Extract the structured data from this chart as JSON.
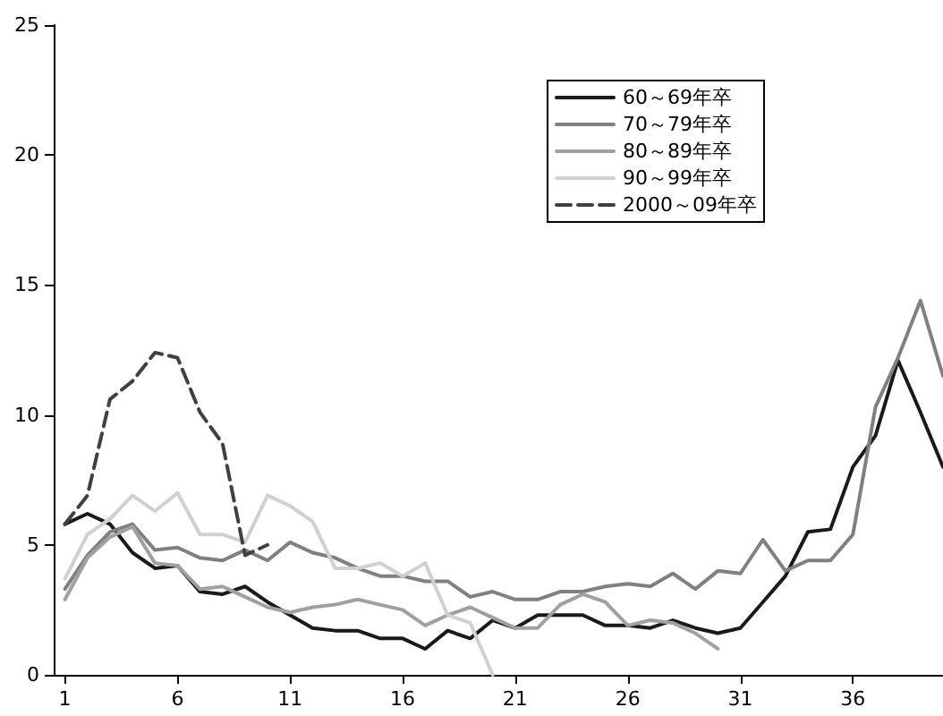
{
  "chart_data": {
    "type": "line",
    "x": [
      1,
      2,
      3,
      4,
      5,
      6,
      7,
      8,
      9,
      10,
      11,
      12,
      13,
      14,
      15,
      16,
      17,
      18,
      19,
      20,
      21,
      22,
      23,
      24,
      25,
      26,
      27,
      28,
      29,
      30,
      31,
      32,
      33,
      34,
      35,
      36,
      37,
      38,
      39,
      40
    ],
    "xlim": [
      0.5,
      40
    ],
    "xticks": [
      1,
      6,
      11,
      16,
      21,
      26,
      31,
      36
    ],
    "series": [
      {
        "name": "60～69年卒",
        "color": "#1a1a1a",
        "values": [
          5.8,
          6.2,
          5.8,
          4.7,
          4.1,
          4.2,
          3.2,
          3.1,
          3.4,
          2.8,
          2.3,
          1.8,
          1.7,
          1.7,
          1.4,
          1.4,
          1.0,
          1.7,
          1.4,
          2.1,
          1.8,
          2.3,
          2.3,
          2.3,
          1.9,
          1.9,
          1.8,
          2.1,
          1.8,
          1.6,
          1.8,
          2.8,
          3.8,
          5.5,
          5.6,
          8.0,
          9.2,
          12.1,
          10.1,
          8.0
        ]
      },
      {
        "name": "70～79年卒",
        "color": "#808080",
        "values": [
          3.3,
          4.6,
          5.5,
          5.8,
          4.8,
          4.9,
          4.5,
          4.4,
          4.8,
          4.4,
          5.1,
          4.7,
          4.5,
          4.1,
          3.8,
          3.8,
          3.6,
          3.6,
          3.0,
          3.2,
          2.9,
          2.9,
          3.2,
          3.2,
          3.4,
          3.5,
          3.4,
          3.9,
          3.3,
          4.0,
          3.9,
          5.2,
          4.0,
          4.4,
          4.4,
          5.4,
          10.3,
          12.2,
          14.4,
          11.5
        ]
      },
      {
        "name": "80～89年卒",
        "color": "#a0a0a0",
        "values": [
          2.9,
          4.5,
          5.3,
          5.7,
          4.3,
          4.2,
          3.3,
          3.4,
          3.0,
          2.6,
          2.4,
          2.6,
          2.7,
          2.9,
          2.7,
          2.5,
          1.9,
          2.3,
          2.6,
          2.2,
          1.8,
          1.8,
          2.7,
          3.1,
          2.8,
          1.9,
          2.1,
          2.0,
          1.6,
          1.0,
          null,
          null,
          null,
          null,
          null,
          null,
          null,
          null,
          null,
          null
        ]
      },
      {
        "name": "90～99年卒",
        "color": "#d0d0d0",
        "values": [
          3.7,
          5.4,
          6.0,
          6.9,
          6.3,
          7.0,
          5.4,
          5.4,
          5.1,
          6.9,
          6.5,
          5.9,
          4.1,
          4.1,
          4.3,
          3.8,
          4.3,
          2.3,
          2.0,
          0,
          null,
          null,
          null,
          null,
          null,
          null,
          null,
          null,
          null,
          null,
          null,
          null,
          null,
          null,
          null,
          null,
          null,
          null,
          null,
          null
        ]
      },
      {
        "name": "2000～09年卒",
        "color": "#404040",
        "line_style": "dashed",
        "values": [
          5.8,
          6.9,
          10.6,
          11.3,
          12.4,
          12.2,
          10.1,
          8.9,
          4.6,
          5.0,
          null,
          null,
          null,
          null,
          null,
          null,
          null,
          null,
          null,
          null,
          null,
          null,
          null,
          null,
          null,
          null,
          null,
          null,
          null,
          null,
          null,
          null,
          null,
          null,
          null,
          null,
          null,
          null,
          null,
          null
        ]
      }
    ],
    "ylim": [
      0,
      25
    ],
    "yticks": [
      0,
      5,
      10,
      15,
      20,
      25
    ],
    "grid": false,
    "legend": "top right",
    "marker": "none",
    "line_style": "solid"
  }
}
